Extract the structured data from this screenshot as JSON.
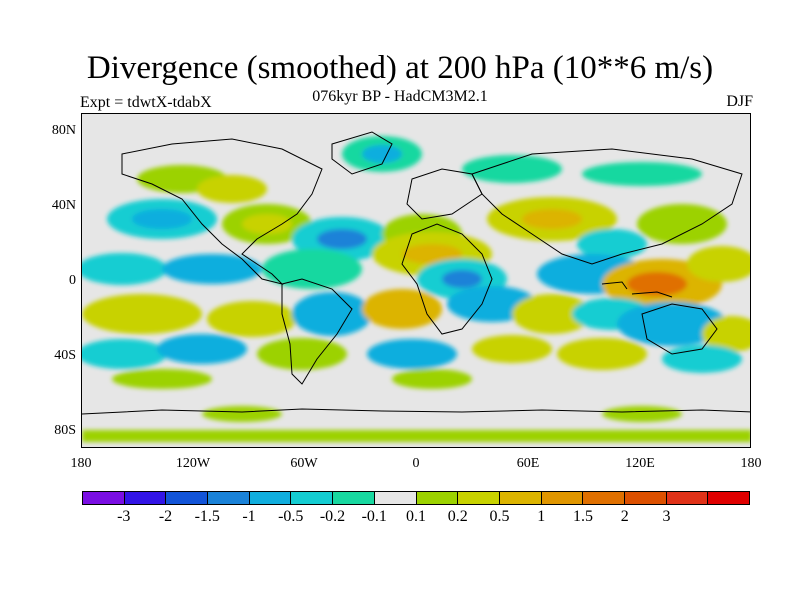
{
  "title": "Divergence (smoothed) at 200 hPa (10**6 m/s)",
  "subtitle": "076kyr BP - HadCM3M2.1",
  "experiment": "Expt = tdwtX-tdabX",
  "season": "DJF",
  "lat_labels": [
    "80N",
    "40N",
    "0",
    "40S",
    "80S"
  ],
  "lon_labels": [
    "180",
    "120W",
    "60W",
    "0",
    "60E",
    "120E",
    "180"
  ],
  "colorbar": {
    "colors": [
      "#7a0ee3",
      "#3214e6",
      "#1254d8",
      "#1a82d8",
      "#10aede",
      "#14cdd2",
      "#18d8a0",
      "#e6e6e6",
      "#9cd200",
      "#c8d200",
      "#dcb400",
      "#e09600",
      "#e07000",
      "#dc5000",
      "#e03218",
      "#e00000"
    ],
    "tick_labels": [
      "-3",
      "-2",
      "-1.5",
      "-1",
      "-0.5",
      "-0.2",
      "-0.1",
      "0.1",
      "0.2",
      "0.5",
      "1",
      "1.5",
      "2",
      "3"
    ]
  }
}
